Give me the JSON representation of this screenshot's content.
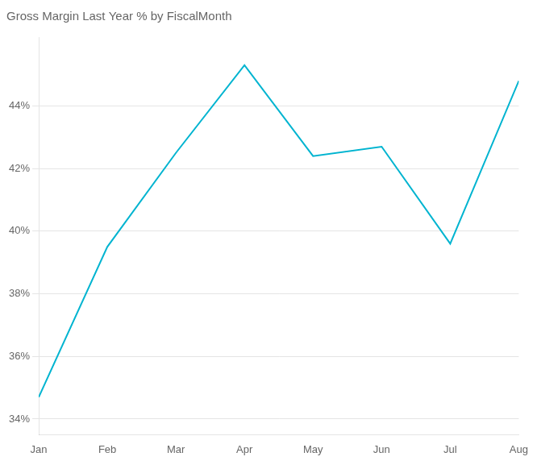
{
  "chart_data": {
    "type": "line",
    "title": "Gross Margin Last Year % by FiscalMonth",
    "categories": [
      "Jan",
      "Feb",
      "Mar",
      "Apr",
      "May",
      "Jun",
      "Jul",
      "Aug"
    ],
    "values": [
      34.7,
      39.5,
      42.5,
      45.3,
      42.4,
      42.7,
      39.6,
      44.8
    ],
    "color": "#00B4D0",
    "ylim": [
      33.5,
      46.2
    ],
    "yticks": [
      {
        "value": 34,
        "label": "34%"
      },
      {
        "value": 36,
        "label": "36%"
      },
      {
        "value": 38,
        "label": "38%"
      },
      {
        "value": 40,
        "label": "40%"
      },
      {
        "value": 42,
        "label": "42%"
      },
      {
        "value": 44,
        "label": "44%"
      }
    ],
    "grid": true
  }
}
